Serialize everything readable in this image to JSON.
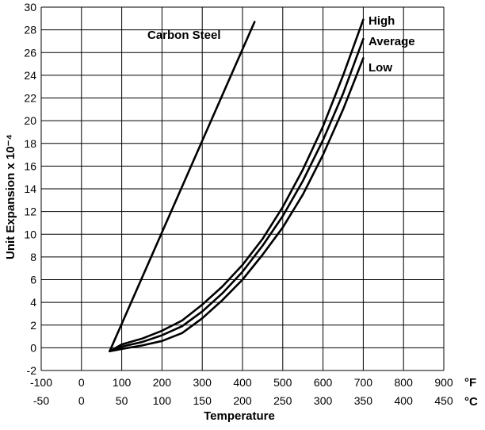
{
  "chart_data": {
    "type": "line",
    "title": "",
    "xlabel": "Temperature",
    "ylabel": "Unit Expansion x 10⁻⁴",
    "x_unit_primary": "°F",
    "x_unit_secondary": "°C",
    "xlim": [
      -100,
      900
    ],
    "ylim": [
      -2,
      30
    ],
    "x_ticks_f": [
      -100,
      0,
      100,
      200,
      300,
      400,
      500,
      600,
      700,
      800,
      900
    ],
    "x_ticks_c": [
      -50,
      0,
      50,
      100,
      150,
      200,
      250,
      300,
      350,
      400,
      450
    ],
    "y_ticks": [
      -2,
      0,
      2,
      4,
      6,
      8,
      10,
      12,
      14,
      16,
      18,
      20,
      22,
      24,
      26,
      28,
      30
    ],
    "grid": true,
    "series": [
      {
        "name": "Carbon Steel",
        "x": [
          70,
          430
        ],
        "y": [
          -0.3,
          28.7
        ]
      },
      {
        "name": "High",
        "x": [
          70,
          100,
          150,
          200,
          250,
          300,
          350,
          400,
          450,
          500,
          550,
          600,
          650,
          700
        ],
        "y": [
          -0.3,
          0.3,
          0.8,
          1.5,
          2.4,
          3.8,
          5.4,
          7.3,
          9.6,
          12.4,
          15.7,
          19.5,
          24.0,
          28.9
        ]
      },
      {
        "name": "Average",
        "x": [
          70,
          100,
          150,
          200,
          250,
          300,
          350,
          400,
          450,
          500,
          550,
          600,
          650,
          700
        ],
        "y": [
          -0.3,
          0.1,
          0.5,
          1.1,
          1.9,
          3.2,
          4.8,
          6.7,
          9.0,
          11.6,
          14.7,
          18.3,
          22.4,
          27.2
        ]
      },
      {
        "name": "Low",
        "x": [
          70,
          100,
          150,
          200,
          250,
          300,
          350,
          400,
          450,
          500,
          550,
          600,
          650,
          700
        ],
        "y": [
          -0.3,
          -0.1,
          0.2,
          0.6,
          1.3,
          2.6,
          4.2,
          6.0,
          8.2,
          10.6,
          13.5,
          17.0,
          21.0,
          25.5
        ]
      }
    ]
  }
}
